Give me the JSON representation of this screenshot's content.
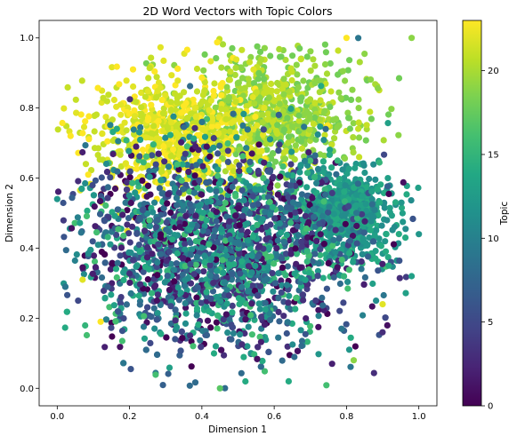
{
  "chart_data": {
    "type": "scatter",
    "title": "2D Word Vectors with Topic Colors",
    "xlabel": "Dimension 1",
    "ylabel": "Dimension 2",
    "xlim": [
      -0.05,
      1.05
    ],
    "ylim": [
      -0.05,
      1.05
    ],
    "xticks": [
      "0.0",
      "0.2",
      "0.4",
      "0.6",
      "0.8",
      "1.0"
    ],
    "yticks": [
      "0.0",
      "0.2",
      "0.4",
      "0.6",
      "0.8",
      "1.0"
    ],
    "grid": false,
    "colorbar": {
      "label": "Topic",
      "range": [
        0,
        23
      ],
      "ticks": [
        "0",
        "5",
        "10",
        "15",
        "20"
      ],
      "colormap": "viridis"
    },
    "point_color": "topic (viridis colormap)",
    "clusters": [
      {
        "x_center": 0.6,
        "y_center": 0.78,
        "topic_range": [
          18,
          21
        ],
        "note": "upper-right green group"
      },
      {
        "x_center": 0.32,
        "y_center": 0.72,
        "topic_range": [
          21,
          23
        ],
        "note": "upper-left yellow group"
      },
      {
        "x_center": 0.8,
        "y_center": 0.5,
        "topic_range": [
          11,
          14
        ],
        "note": "right teal group"
      },
      {
        "x_center": 0.45,
        "y_center": 0.4,
        "topic_range": [
          0,
          16
        ],
        "note": "central mixed group"
      }
    ],
    "sample_points": [
      {
        "x": 0.0,
        "y": 0.54,
        "topic": 12
      },
      {
        "x": 0.98,
        "y": 1.0,
        "topic": 19
      },
      {
        "x": 0.8,
        "y": 1.0,
        "topic": 23
      },
      {
        "x": 0.45,
        "y": 0.0,
        "topic": 17
      },
      {
        "x": 0.07,
        "y": 0.31,
        "topic": 22
      },
      {
        "x": 0.9,
        "y": 0.24,
        "topic": 22
      },
      {
        "x": 0.82,
        "y": 0.08,
        "topic": 19
      },
      {
        "x": 0.76,
        "y": 0.07,
        "topic": 2
      },
      {
        "x": 0.12,
        "y": 0.19,
        "topic": 23
      },
      {
        "x": 1.0,
        "y": 0.44,
        "topic": 12
      },
      {
        "x": 0.98,
        "y": 0.32,
        "topic": 13
      },
      {
        "x": 0.64,
        "y": 0.02,
        "topic": 14
      }
    ]
  }
}
